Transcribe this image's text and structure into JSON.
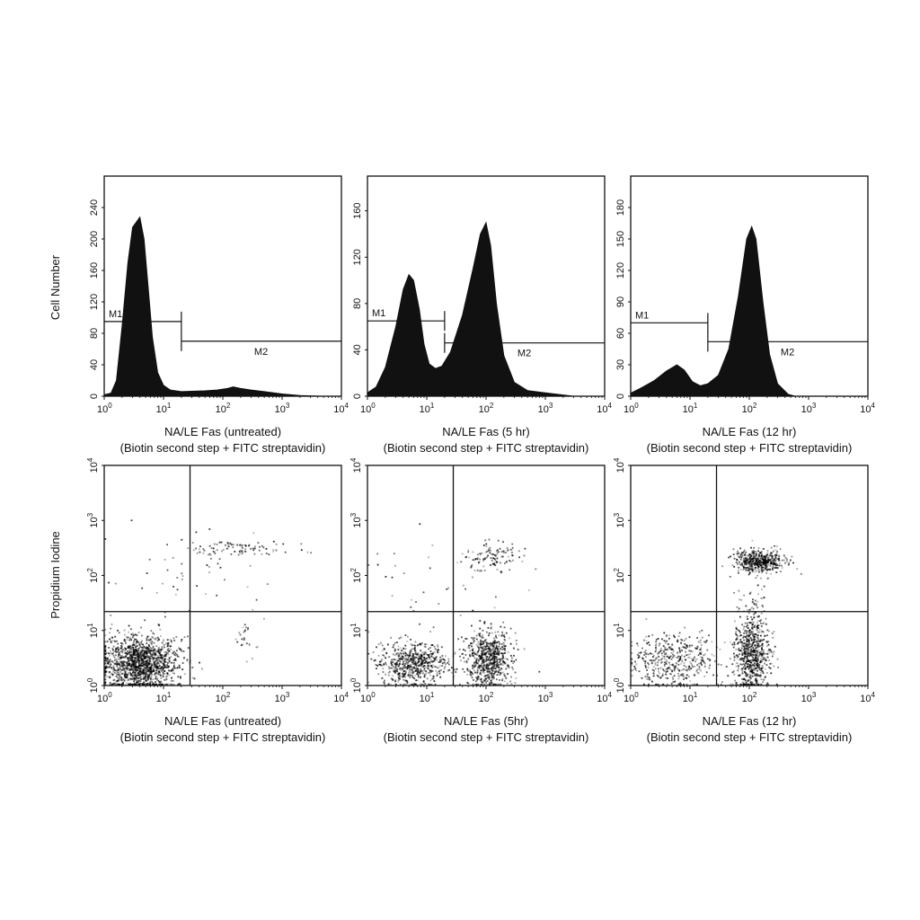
{
  "y_labels": {
    "top": "Cell Number",
    "bottom": "Propidium Iodine"
  },
  "chart_data": [
    {
      "type": "area",
      "panel": "histogram-untreated",
      "xlabel": "NA/LE Fas (untreated)",
      "xlabel2": "(Biotin second step + FITC streptavidin)",
      "xscale": "log",
      "xlim": [
        1,
        10000
      ],
      "xticks": [
        "10^0",
        "10^1",
        "10^2",
        "10^3",
        "10^4"
      ],
      "ylim": [
        0,
        280
      ],
      "yticks": [
        0,
        40,
        80,
        120,
        160,
        200,
        240
      ],
      "gates": [
        {
          "name": "M1",
          "from": 1,
          "to": 20,
          "level": 95
        },
        {
          "name": "M2",
          "from": 20,
          "to": 10000,
          "level": 70
        }
      ],
      "series": [
        {
          "values": [
            [
              1,
              2
            ],
            [
              1.3,
              4
            ],
            [
              1.6,
              20
            ],
            [
              2,
              90
            ],
            [
              2.5,
              170
            ],
            [
              3,
              215
            ],
            [
              3.5,
              222
            ],
            [
              4,
              228
            ],
            [
              4.7,
              200
            ],
            [
              5.5,
              140
            ],
            [
              6.5,
              75
            ],
            [
              8,
              30
            ],
            [
              10,
              14
            ],
            [
              13,
              8
            ],
            [
              20,
              6
            ],
            [
              50,
              7
            ],
            [
              80,
              8
            ],
            [
              120,
              10
            ],
            [
              150,
              12
            ],
            [
              200,
              10
            ],
            [
              300,
              8
            ],
            [
              500,
              6
            ],
            [
              1000,
              3
            ],
            [
              2000,
              1
            ],
            [
              5000,
              0
            ]
          ]
        }
      ]
    },
    {
      "type": "area",
      "panel": "histogram-5hr",
      "xlabel": "NA/LE Fas (5 hr)",
      "xlabel2": "(Biotin second step + FITC streptavidin)",
      "xscale": "log",
      "xlim": [
        1,
        10000
      ],
      "xticks": [
        "10^0",
        "10^1",
        "10^2",
        "10^3",
        "10^4"
      ],
      "ylim": [
        0,
        190
      ],
      "yticks": [
        0,
        40,
        80,
        120,
        160
      ],
      "gates": [
        {
          "name": "M1",
          "from": 1,
          "to": 20,
          "level": 65
        },
        {
          "name": "M2",
          "from": 20,
          "to": 10000,
          "level": 46
        }
      ],
      "series": [
        {
          "values": [
            [
              1,
              3
            ],
            [
              1.4,
              8
            ],
            [
              2,
              25
            ],
            [
              3,
              60
            ],
            [
              4,
              92
            ],
            [
              5,
              105
            ],
            [
              6,
              100
            ],
            [
              7.5,
              75
            ],
            [
              9,
              45
            ],
            [
              11,
              28
            ],
            [
              14,
              24
            ],
            [
              18,
              26
            ],
            [
              25,
              38
            ],
            [
              40,
              70
            ],
            [
              60,
              110
            ],
            [
              80,
              140
            ],
            [
              100,
              150
            ],
            [
              120,
              130
            ],
            [
              150,
              80
            ],
            [
              200,
              35
            ],
            [
              300,
              12
            ],
            [
              500,
              5
            ],
            [
              1000,
              3
            ],
            [
              3000,
              0
            ]
          ]
        }
      ]
    },
    {
      "type": "area",
      "panel": "histogram-12hr",
      "xlabel": "NA/LE Fas (12 hr)",
      "xlabel2": "(Biotin second step + FITC streptavidin)",
      "xscale": "log",
      "xlim": [
        1,
        10000
      ],
      "xticks": [
        "10^0",
        "10^1",
        "10^2",
        "10^3",
        "10^4"
      ],
      "ylim": [
        0,
        210
      ],
      "yticks": [
        0,
        30,
        60,
        90,
        120,
        150,
        180
      ],
      "gates": [
        {
          "name": "M1",
          "from": 1,
          "to": 20,
          "level": 70
        },
        {
          "name": "M2",
          "from": 20,
          "to": 10000,
          "level": 52
        }
      ],
      "series": [
        {
          "values": [
            [
              1,
              3
            ],
            [
              1.5,
              8
            ],
            [
              2.5,
              15
            ],
            [
              4,
              24
            ],
            [
              6,
              30
            ],
            [
              8,
              25
            ],
            [
              11,
              14
            ],
            [
              15,
              10
            ],
            [
              20,
              12
            ],
            [
              30,
              20
            ],
            [
              45,
              45
            ],
            [
              65,
              95
            ],
            [
              90,
              150
            ],
            [
              110,
              162
            ],
            [
              130,
              150
            ],
            [
              170,
              90
            ],
            [
              220,
              40
            ],
            [
              300,
              12
            ],
            [
              450,
              2
            ],
            [
              600,
              0
            ]
          ]
        }
      ]
    },
    {
      "type": "scatter",
      "panel": "dot-untreated",
      "xlabel": "NA/LE Fas (untreated)",
      "xlabel2": "(Biotin second step + FITC streptavidin)",
      "xscale": "log",
      "yscale": "log",
      "xlim": [
        1,
        10000
      ],
      "ylim": [
        1,
        10000
      ],
      "xticks": [
        "10^0",
        "10^1",
        "10^2",
        "10^3",
        "10^4"
      ],
      "yticks": [
        "10^0",
        "10^1",
        "10^2",
        "10^3",
        "10^4"
      ],
      "quadrant": {
        "x": 28,
        "y": 22
      },
      "clusters": [
        {
          "x": 4,
          "y": 2.5,
          "sx": 0.32,
          "sy": 0.25,
          "n": 1400
        },
        {
          "x": 180,
          "y": 300,
          "sx": 0.45,
          "sy": 0.08,
          "n": 90
        },
        {
          "x": 250,
          "y": 6,
          "sx": 0.12,
          "sy": 0.25,
          "n": 25
        },
        {
          "x": 20,
          "y": 120,
          "sx": 0.8,
          "sy": 0.5,
          "n": 40
        }
      ]
    },
    {
      "type": "scatter",
      "panel": "dot-5hr",
      "xlabel": "NA/LE Fas (5hr)",
      "xlabel2": "(Biotin second step + FITC streptavidin)",
      "xscale": "log",
      "yscale": "log",
      "xlim": [
        1,
        10000
      ],
      "ylim": [
        1,
        10000
      ],
      "xticks": [
        "10^0",
        "10^1",
        "10^2",
        "10^3",
        "10^4"
      ],
      "yticks": [
        "10^0",
        "10^1",
        "10^2",
        "10^3",
        "10^4"
      ],
      "quadrant": {
        "x": 28,
        "y": 22
      },
      "clusters": [
        {
          "x": 6,
          "y": 2.5,
          "sx": 0.28,
          "sy": 0.2,
          "n": 600
        },
        {
          "x": 110,
          "y": 3,
          "sx": 0.2,
          "sy": 0.25,
          "n": 650
        },
        {
          "x": 130,
          "y": 220,
          "sx": 0.25,
          "sy": 0.12,
          "n": 110
        },
        {
          "x": 20,
          "y": 100,
          "sx": 0.8,
          "sy": 0.5,
          "n": 35
        }
      ]
    },
    {
      "type": "scatter",
      "panel": "dot-12hr",
      "xlabel": "NA/LE Fas (12 hr)",
      "xlabel2": "(Biotin second step + FITC streptavidin)",
      "xscale": "log",
      "yscale": "log",
      "xlim": [
        1,
        10000
      ],
      "ylim": [
        1,
        10000
      ],
      "xticks": [
        "10^0",
        "10^1",
        "10^2",
        "10^3",
        "10^4"
      ],
      "yticks": [
        "10^0",
        "10^1",
        "10^2",
        "10^3",
        "10^4"
      ],
      "quadrant": {
        "x": 28,
        "y": 22
      },
      "clusters": [
        {
          "x": 5,
          "y": 2.8,
          "sx": 0.35,
          "sy": 0.25,
          "n": 420
        },
        {
          "x": 110,
          "y": 3.5,
          "sx": 0.15,
          "sy": 0.32,
          "n": 650
        },
        {
          "x": 150,
          "y": 180,
          "sx": 0.22,
          "sy": 0.1,
          "n": 480
        },
        {
          "x": 110,
          "y": 25,
          "sx": 0.1,
          "sy": 0.35,
          "n": 70
        }
      ]
    }
  ]
}
